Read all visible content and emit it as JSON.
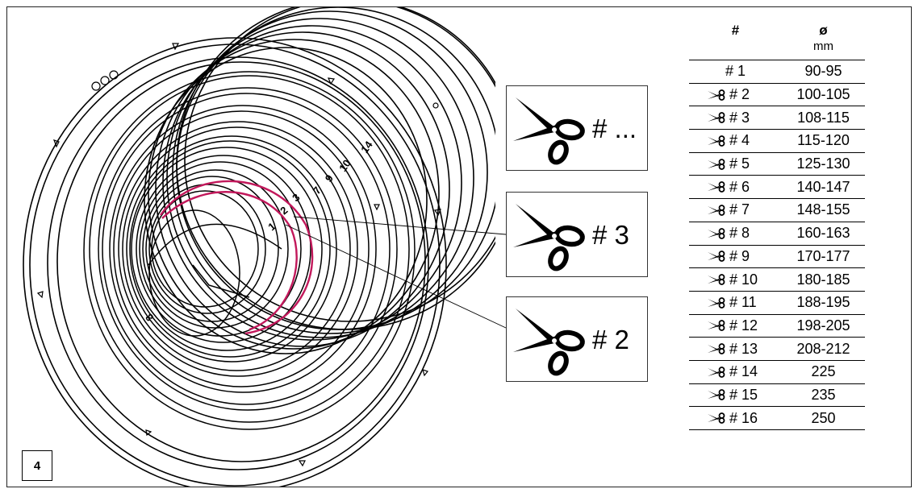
{
  "step_number": "4",
  "ring_labels": [
    "1",
    "2",
    "3",
    "7",
    "9",
    "10",
    "14",
    "8"
  ],
  "callouts": [
    {
      "label": "# ...",
      "icon": "scissors-icon"
    },
    {
      "label": "# 3",
      "icon": "scissors-icon"
    },
    {
      "label": "# 2",
      "icon": "scissors-icon"
    }
  ],
  "table": {
    "header_number": "#",
    "header_diameter": "ø",
    "header_unit": "mm",
    "rows": [
      {
        "number": "# 1",
        "diameter": "90-95",
        "scissors": false
      },
      {
        "number": "# 2",
        "diameter": "100-105",
        "scissors": true
      },
      {
        "number": "# 3",
        "diameter": "108-115",
        "scissors": true
      },
      {
        "number": "# 4",
        "diameter": "115-120",
        "scissors": true
      },
      {
        "number": "# 5",
        "diameter": "125-130",
        "scissors": true
      },
      {
        "number": "# 6",
        "diameter": "140-147",
        "scissors": true
      },
      {
        "number": "# 7",
        "diameter": "148-155",
        "scissors": true
      },
      {
        "number": "# 8",
        "diameter": "160-163",
        "scissors": true
      },
      {
        "number": "# 9",
        "diameter": "170-177",
        "scissors": true
      },
      {
        "number": "# 10",
        "diameter": "180-185",
        "scissors": true
      },
      {
        "number": "# 11",
        "diameter": "188-195",
        "scissors": true
      },
      {
        "number": "# 12",
        "diameter": "198-205",
        "scissors": true
      },
      {
        "number": "# 13",
        "diameter": "208-212",
        "scissors": true
      },
      {
        "number": "# 14",
        "diameter": "225",
        "scissors": true
      },
      {
        "number": "# 15",
        "diameter": "235",
        "scissors": true
      },
      {
        "number": "# 16",
        "diameter": "250",
        "scissors": true
      }
    ]
  },
  "colors": {
    "highlight": "#c2185b",
    "line": "#000000"
  }
}
